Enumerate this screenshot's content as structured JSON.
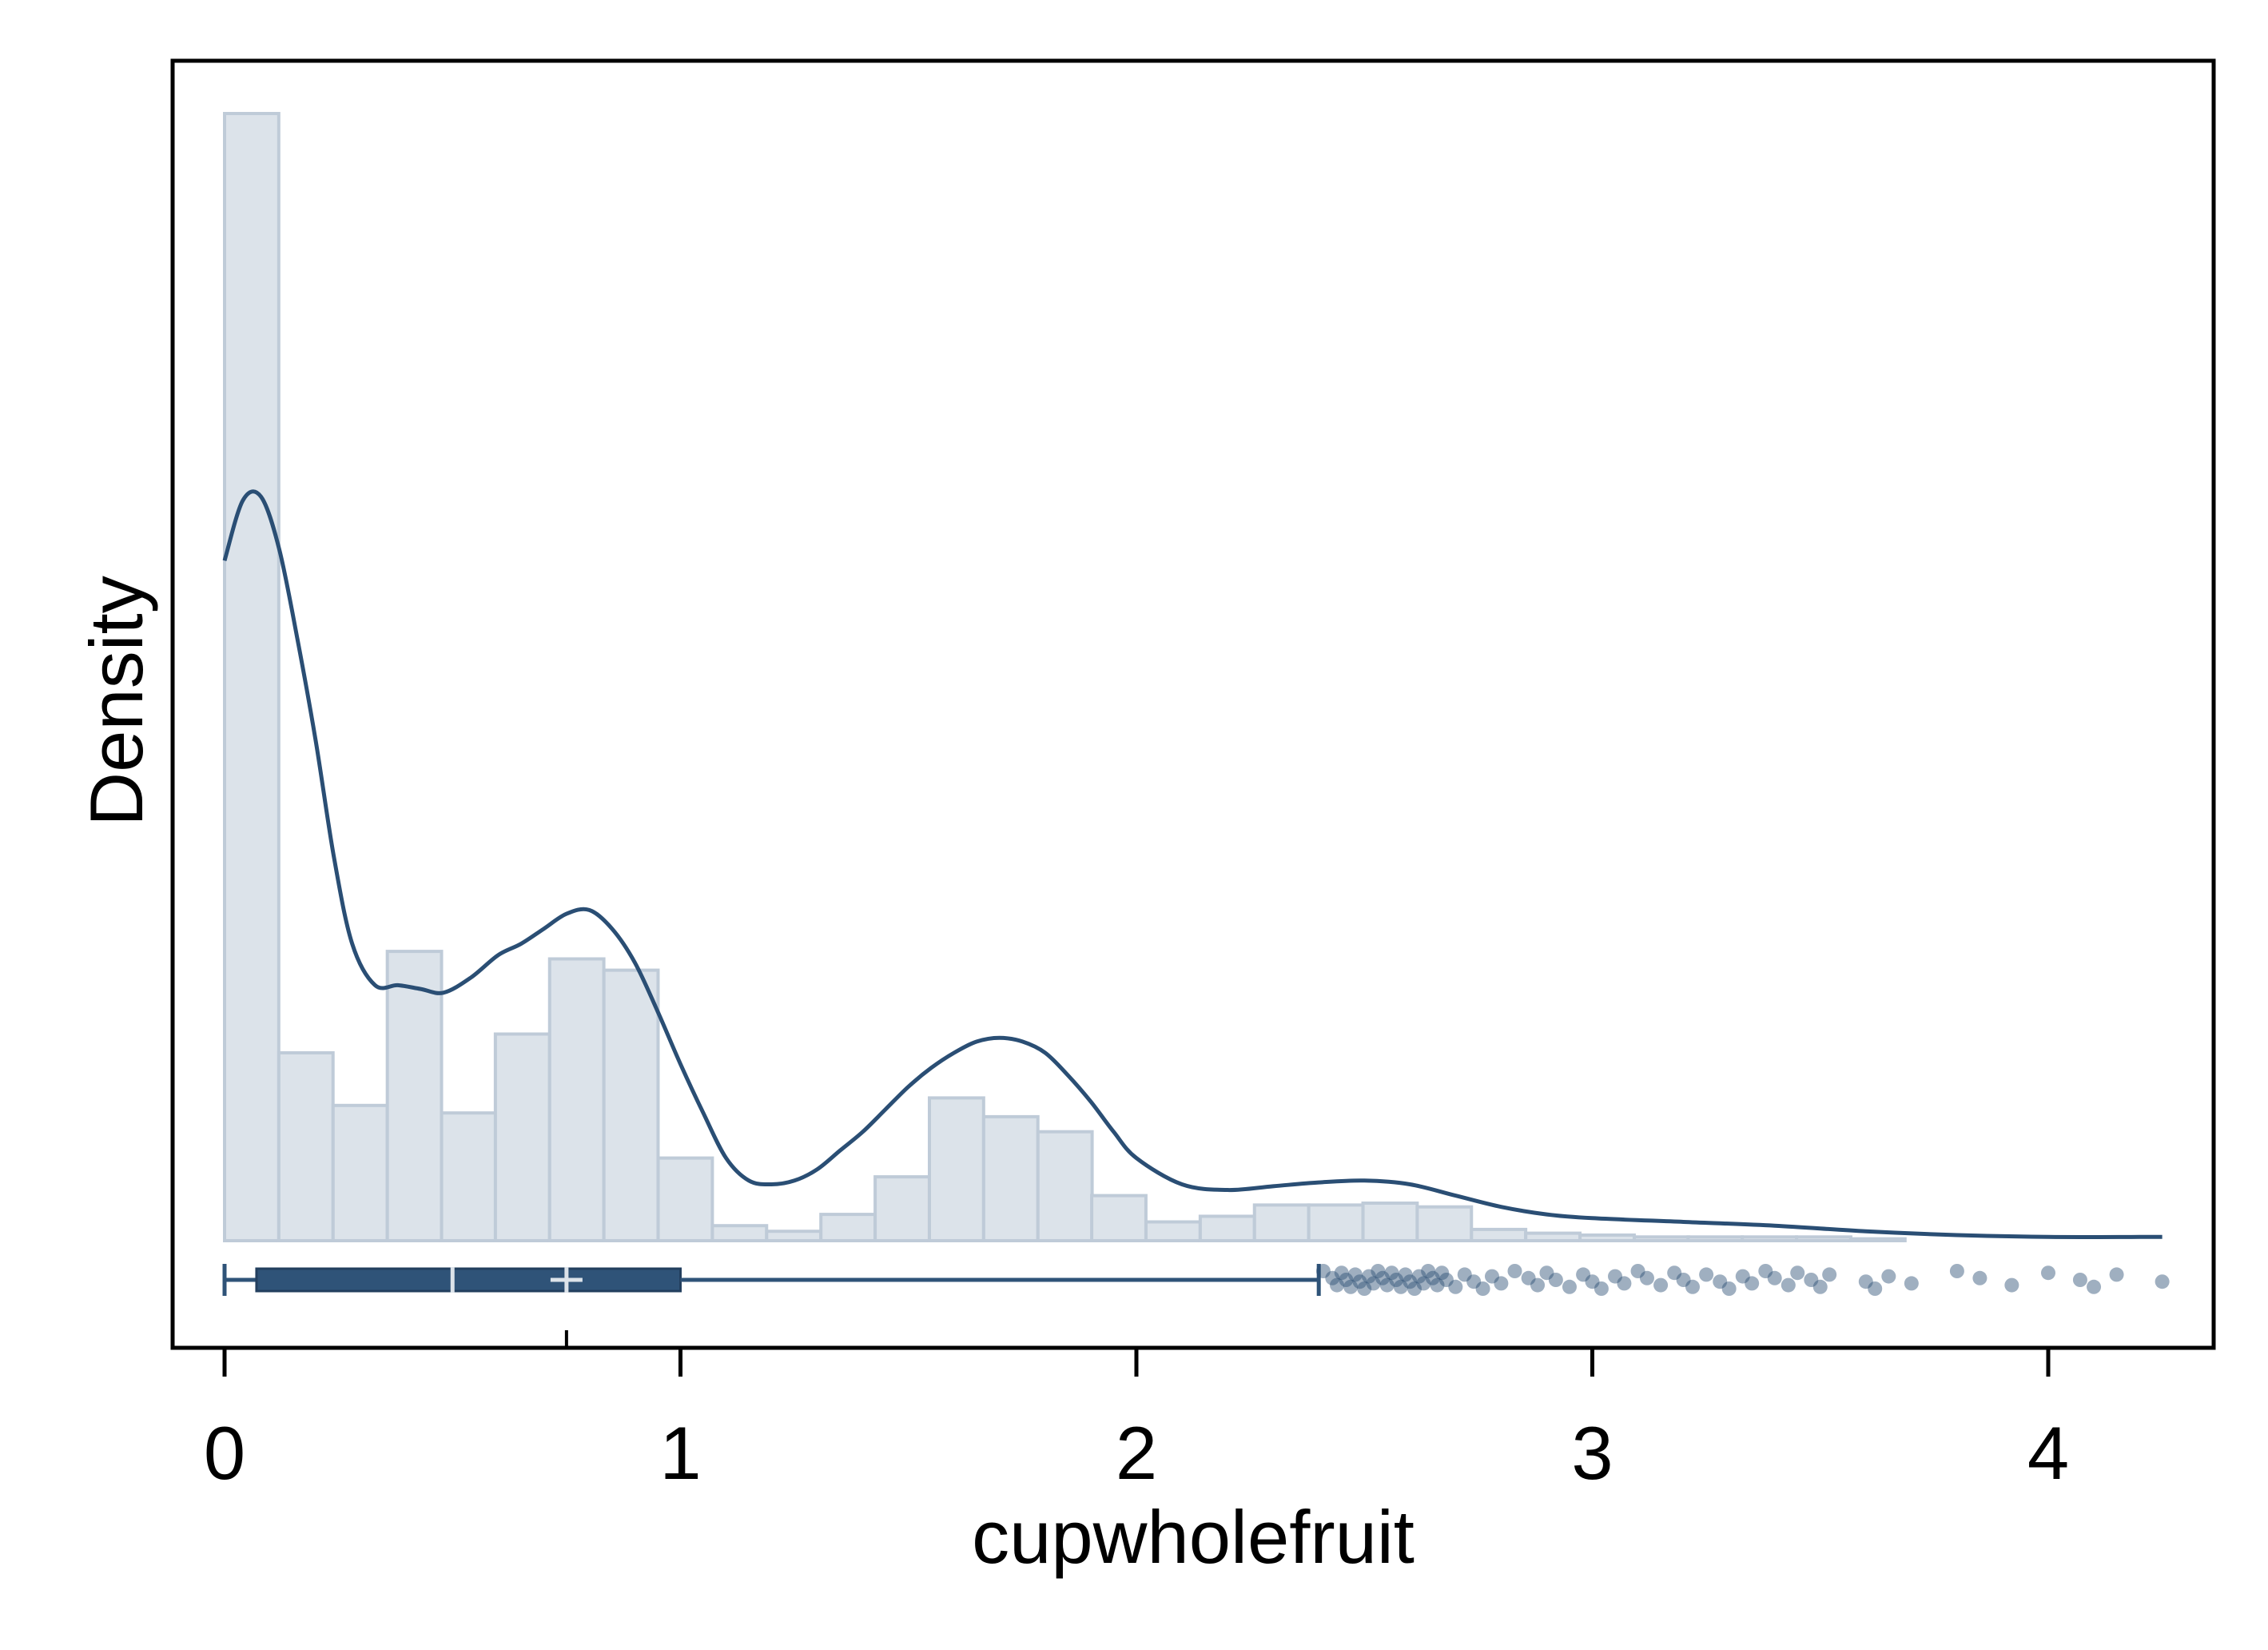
{
  "chart_data": {
    "type": "histogram",
    "title": "",
    "xlabel": "cupwholefruit",
    "ylabel": "Density",
    "xlim": [
      -0.1,
      4.38
    ],
    "ylim": [
      0,
      3.05
    ],
    "x_ticks": [
      0,
      1,
      2,
      3,
      4
    ],
    "x_tick_labels": [
      "0",
      "1",
      "2",
      "3",
      "4"
    ],
    "y_ticks_shown": false,
    "grid": false,
    "legend": "none",
    "colors": {
      "bar_fill": "#dce3ea",
      "bar_stroke": "#bfcbd8",
      "line": "#2a4e74",
      "box": "#2f5378",
      "frame": "#000000"
    },
    "histogram": {
      "bin_width": 0.1189,
      "bins": [
        {
          "x0": 0.0,
          "density": 3.0
        },
        {
          "x0": 0.119,
          "density": 0.5
        },
        {
          "x0": 0.238,
          "density": 0.36
        },
        {
          "x0": 0.357,
          "density": 0.77
        },
        {
          "x0": 0.476,
          "density": 0.34
        },
        {
          "x0": 0.594,
          "density": 0.55
        },
        {
          "x0": 0.713,
          "density": 0.75
        },
        {
          "x0": 0.832,
          "density": 0.72
        },
        {
          "x0": 0.951,
          "density": 0.22
        },
        {
          "x0": 1.07,
          "density": 0.04
        },
        {
          "x0": 1.189,
          "density": 0.025
        },
        {
          "x0": 1.308,
          "density": 0.07
        },
        {
          "x0": 1.427,
          "density": 0.17
        },
        {
          "x0": 1.546,
          "density": 0.38
        },
        {
          "x0": 1.665,
          "density": 0.33
        },
        {
          "x0": 1.784,
          "density": 0.29
        },
        {
          "x0": 1.902,
          "density": 0.12
        },
        {
          "x0": 2.021,
          "density": 0.05
        },
        {
          "x0": 2.14,
          "density": 0.065
        },
        {
          "x0": 2.259,
          "density": 0.095
        },
        {
          "x0": 2.378,
          "density": 0.095
        },
        {
          "x0": 2.497,
          "density": 0.1
        },
        {
          "x0": 2.616,
          "density": 0.09
        },
        {
          "x0": 2.735,
          "density": 0.03
        },
        {
          "x0": 2.854,
          "density": 0.02
        },
        {
          "x0": 2.973,
          "density": 0.015
        },
        {
          "x0": 3.092,
          "density": 0.01
        },
        {
          "x0": 3.21,
          "density": 0.01
        },
        {
          "x0": 3.329,
          "density": 0.01
        },
        {
          "x0": 3.448,
          "density": 0.01
        },
        {
          "x0": 3.567,
          "density": 0.005
        }
      ]
    },
    "kde": {
      "x": [
        0.0,
        0.04,
        0.08,
        0.12,
        0.16,
        0.2,
        0.24,
        0.28,
        0.33,
        0.38,
        0.43,
        0.48,
        0.54,
        0.6,
        0.65,
        0.7,
        0.75,
        0.8,
        0.85,
        0.9,
        0.95,
        1.0,
        1.05,
        1.1,
        1.15,
        1.2,
        1.25,
        1.3,
        1.35,
        1.4,
        1.45,
        1.5,
        1.55,
        1.6,
        1.65,
        1.7,
        1.75,
        1.8,
        1.85,
        1.9,
        1.95,
        2.0,
        2.1,
        2.2,
        2.3,
        2.4,
        2.5,
        2.6,
        2.7,
        2.8,
        2.9,
        3.0,
        3.2,
        3.4,
        3.6,
        3.8,
        4.0,
        4.2,
        4.25
      ],
      "y": [
        1.81,
        1.97,
        1.98,
        1.84,
        1.6,
        1.33,
        1.02,
        0.79,
        0.68,
        0.68,
        0.67,
        0.66,
        0.7,
        0.76,
        0.79,
        0.83,
        0.87,
        0.88,
        0.83,
        0.74,
        0.61,
        0.47,
        0.34,
        0.22,
        0.16,
        0.15,
        0.16,
        0.19,
        0.24,
        0.29,
        0.35,
        0.41,
        0.46,
        0.5,
        0.53,
        0.54,
        0.53,
        0.5,
        0.44,
        0.37,
        0.29,
        0.22,
        0.15,
        0.135,
        0.145,
        0.155,
        0.16,
        0.15,
        0.12,
        0.09,
        0.07,
        0.06,
        0.05,
        0.04,
        0.025,
        0.015,
        0.01,
        0.01,
        0.01
      ]
    },
    "boxplot": {
      "min": 0.0,
      "q1": 0.07,
      "median": 0.5,
      "mean": 0.75,
      "q3": 1.0,
      "upper_whisker": 2.4
    },
    "outliers": [
      2.41,
      2.43,
      2.44,
      2.45,
      2.46,
      2.47,
      2.48,
      2.49,
      2.5,
      2.51,
      2.52,
      2.53,
      2.54,
      2.55,
      2.56,
      2.57,
      2.58,
      2.59,
      2.6,
      2.61,
      2.62,
      2.63,
      2.64,
      2.65,
      2.66,
      2.67,
      2.68,
      2.7,
      2.72,
      2.74,
      2.76,
      2.78,
      2.8,
      2.83,
      2.86,
      2.88,
      2.9,
      2.92,
      2.95,
      2.98,
      3.0,
      3.02,
      3.05,
      3.07,
      3.1,
      3.12,
      3.15,
      3.18,
      3.2,
      3.22,
      3.25,
      3.28,
      3.3,
      3.33,
      3.35,
      3.38,
      3.4,
      3.43,
      3.45,
      3.48,
      3.5,
      3.52,
      3.6,
      3.62,
      3.65,
      3.7,
      3.8,
      3.85,
      3.92,
      4.0,
      4.07,
      4.1,
      4.15,
      4.25
    ],
    "mean_marker_x": 0.75
  }
}
